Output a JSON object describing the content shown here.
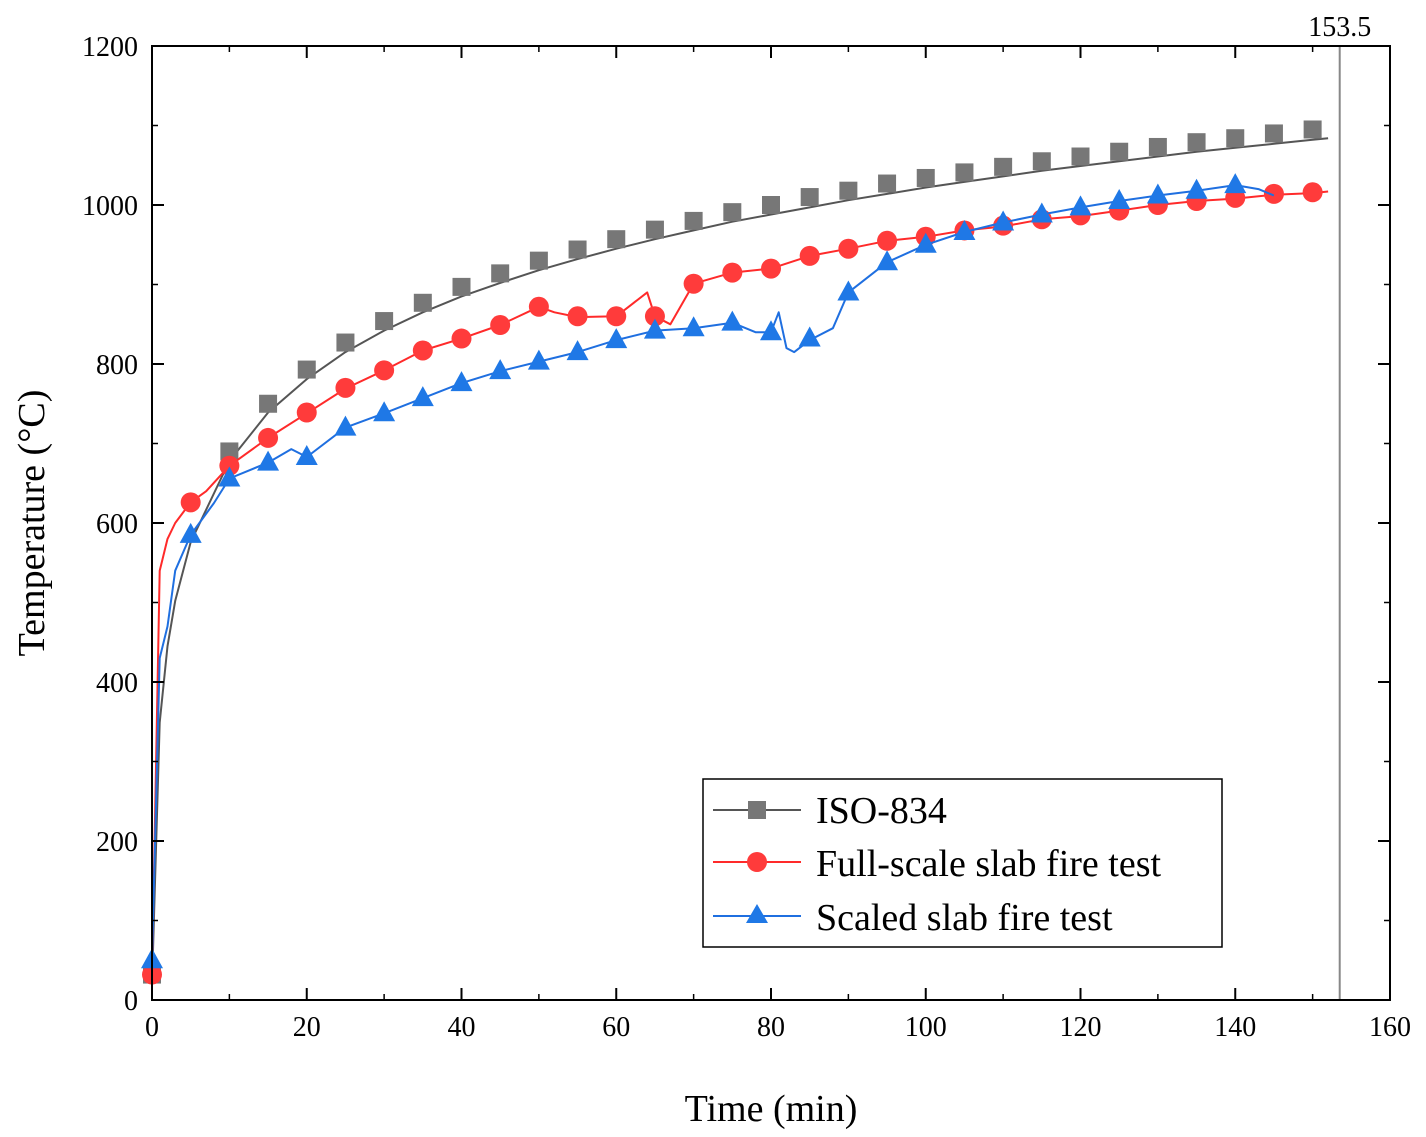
{
  "chart_data": {
    "type": "line",
    "title": "",
    "xlabel": "Time (min)",
    "ylabel": "Temperature (°C)",
    "xlim": [
      0,
      160
    ],
    "ylim": [
      0,
      1200
    ],
    "xticks": [
      0,
      20,
      40,
      60,
      80,
      100,
      120,
      140,
      160
    ],
    "yticks": [
      0,
      200,
      400,
      600,
      800,
      1000,
      1200
    ],
    "grid": false,
    "legend_position": "bottom-right",
    "reference_line": {
      "x": 153.5,
      "label": "153.5",
      "color": "#888888"
    },
    "series": [
      {
        "name": "ISO-834",
        "color": "#555555",
        "marker": "square",
        "x": [
          0,
          1,
          2,
          3,
          5,
          10,
          15,
          20,
          25,
          30,
          35,
          40,
          45,
          50,
          55,
          60,
          65,
          70,
          75,
          80,
          85,
          90,
          95,
          100,
          105,
          110,
          115,
          120,
          125,
          130,
          135,
          140,
          145,
          150,
          152
        ],
        "y": [
          20,
          349,
          445,
          502,
          576,
          678,
          739,
          781,
          815,
          842,
          865,
          885,
          902,
          918,
          932,
          945,
          957,
          968,
          979,
          988,
          997,
          1006,
          1014,
          1022,
          1029,
          1036,
          1043,
          1049,
          1055,
          1061,
          1067,
          1072,
          1077,
          1082,
          1084
        ],
        "marker_x": [
          0,
          10,
          15,
          20,
          25,
          30,
          35,
          40,
          45,
          50,
          55,
          60,
          65,
          70,
          75,
          80,
          85,
          90,
          95,
          100,
          105,
          110,
          115,
          120,
          125,
          130,
          135,
          140,
          145,
          150
        ],
        "marker_y": [
          32,
          690,
          750,
          793,
          827,
          854,
          877,
          897,
          914,
          930,
          944,
          957,
          969,
          980,
          991,
          1000,
          1010,
          1018,
          1027,
          1034,
          1041,
          1048,
          1055,
          1061,
          1067,
          1073,
          1079,
          1084,
          1090,
          1095
        ]
      },
      {
        "name": "Full-scale slab fire test",
        "color": "#ff2a2a",
        "marker": "circle",
        "x": [
          0,
          1,
          2,
          3,
          5,
          7,
          10,
          15,
          20,
          25,
          30,
          35,
          40,
          45,
          50,
          52,
          55,
          60,
          62,
          64,
          65,
          67,
          70,
          75,
          80,
          85,
          90,
          95,
          100,
          105,
          110,
          115,
          120,
          125,
          130,
          135,
          140,
          145,
          150,
          152
        ],
        "y": [
          28,
          540,
          580,
          600,
          626,
          640,
          672,
          707,
          738,
          769,
          792,
          817,
          832,
          849,
          872,
          865,
          859,
          860,
          875,
          890,
          860,
          850,
          901,
          915,
          920,
          936,
          945,
          955,
          960,
          968,
          973,
          982,
          986,
          993,
          1000,
          1005,
          1008,
          1013,
          1015,
          1017
        ],
        "marker_x": [
          0,
          5,
          10,
          15,
          20,
          25,
          30,
          35,
          40,
          45,
          50,
          55,
          60,
          65,
          70,
          75,
          80,
          85,
          90,
          95,
          100,
          105,
          110,
          115,
          120,
          125,
          130,
          135,
          140,
          145,
          150
        ],
        "marker_y": [
          32,
          626,
          672,
          707,
          739,
          770,
          792,
          817,
          832,
          849,
          872,
          860,
          860,
          860,
          901,
          915,
          920,
          936,
          945,
          955,
          960,
          968,
          974,
          982,
          987,
          993,
          1000,
          1005,
          1009,
          1014,
          1016
        ]
      },
      {
        "name": "Scaled slab fire test",
        "color": "#1f6fe0",
        "marker": "triangle",
        "x": [
          0,
          1,
          2,
          3,
          5,
          8,
          10,
          15,
          18,
          20,
          25,
          30,
          35,
          40,
          45,
          50,
          55,
          60,
          65,
          70,
          75,
          78,
          80,
          81,
          82,
          83,
          85,
          88,
          90,
          95,
          100,
          105,
          110,
          115,
          120,
          125,
          130,
          135,
          140,
          143,
          145
        ],
        "y": [
          48,
          430,
          470,
          540,
          585,
          625,
          656,
          676,
          693,
          683,
          720,
          738,
          757,
          776,
          791,
          803,
          815,
          830,
          842,
          845,
          852,
          840,
          840,
          865,
          820,
          815,
          830,
          845,
          890,
          928,
          950,
          966,
          978,
          988,
          997,
          1005,
          1012,
          1018,
          1025,
          1020,
          1012
        ],
        "marker_x": [
          0,
          5,
          10,
          15,
          20,
          25,
          30,
          35,
          40,
          45,
          50,
          55,
          60,
          65,
          70,
          75,
          80,
          85,
          90,
          95,
          100,
          105,
          110,
          115,
          120,
          125,
          130,
          135,
          140
        ],
        "marker_y": [
          50,
          585,
          656,
          676,
          683,
          720,
          738,
          757,
          776,
          791,
          803,
          815,
          830,
          842,
          845,
          852,
          840,
          832,
          890,
          928,
          950,
          966,
          978,
          988,
          997,
          1005,
          1012,
          1018,
          1025
        ]
      }
    ]
  }
}
